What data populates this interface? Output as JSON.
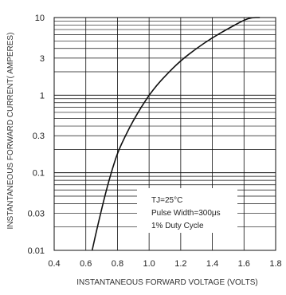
{
  "chart_data": {
    "type": "line",
    "xlabel": "INSTANTANEOUS FORWARD VOLTAGE (VOLTS)",
    "ylabel": "INSTANTANEOUS FORWARD CURRENT( AMPERES)",
    "xlim": [
      0.4,
      1.8
    ],
    "ylim": [
      0.01,
      10
    ],
    "yscale": "log",
    "grid": true,
    "x_ticks": [
      "0.4",
      "0.6",
      "0.8",
      "1.0",
      "1.2",
      "1.4",
      "1.6",
      "1.8"
    ],
    "y_ticks": [
      "0.01",
      "0.03",
      "0.1",
      "0.3",
      "1",
      "3",
      "10"
    ],
    "annotations": [
      "TJ=25°C",
      "Pulse Width=300μs",
      "1% Duty Cycle"
    ],
    "series": [
      {
        "x": [
          0.64,
          0.68,
          0.72,
          0.76,
          0.8,
          0.85,
          0.9,
          0.95,
          1.0,
          1.05,
          1.1,
          1.2,
          1.3,
          1.4,
          1.5,
          1.6,
          1.65,
          1.7
        ],
        "y": [
          0.01,
          0.023,
          0.05,
          0.1,
          0.18,
          0.3,
          0.47,
          0.7,
          1.0,
          1.35,
          1.75,
          2.8,
          4.0,
          5.5,
          7.2,
          9.3,
          10.0,
          10.0
        ]
      }
    ],
    "colors": {
      "line": "#111111",
      "grid": "#111111",
      "frame": "#111111"
    }
  }
}
